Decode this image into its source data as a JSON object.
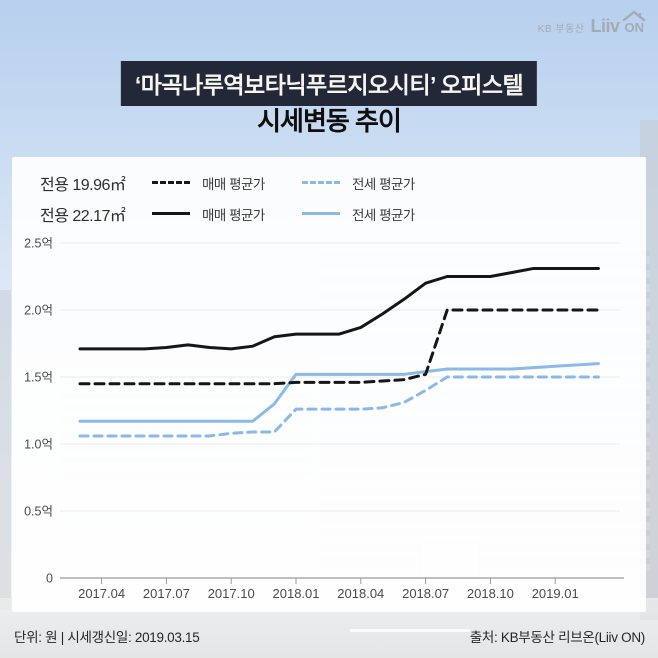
{
  "logo": {
    "brand_small": "KB 부동산",
    "brand_main": "Liiv",
    "brand_on": "ON"
  },
  "header": {
    "title": "‘마곡나루역보타닉푸르지오시티’ 오피스텔",
    "subtitle": "시세변동 추이",
    "band_color": "#232838"
  },
  "legend": {
    "rows": [
      {
        "area_label": "전용 19.96㎡",
        "sale_label": "매매 평균가",
        "jeonse_label": "전세 평균가",
        "line_style": "dashed"
      },
      {
        "area_label": "전용 22.17㎡",
        "sale_label": "매매 평균가",
        "jeonse_label": "전세 평균가",
        "line_style": "solid"
      }
    ]
  },
  "chart_data": {
    "type": "line",
    "unit": "억원",
    "ylim": [
      0,
      2.5
    ],
    "grid": true,
    "x": [
      "2017.03",
      "2017.04",
      "2017.05",
      "2017.06",
      "2017.07",
      "2017.08",
      "2017.09",
      "2017.10",
      "2017.11",
      "2017.12",
      "2018.01",
      "2018.02",
      "2018.03",
      "2018.04",
      "2018.05",
      "2018.06",
      "2018.07",
      "2018.08",
      "2018.09",
      "2018.10",
      "2018.11",
      "2018.12",
      "2019.01",
      "2019.02",
      "2019.03"
    ],
    "x_tick_labels": [
      "2017.04",
      "2017.07",
      "2017.10",
      "2018.01",
      "2018.04",
      "2018.07",
      "2018.10",
      "2019.01"
    ],
    "y_ticks": [
      {
        "label": "2.5억",
        "value": 2.5
      },
      {
        "label": "2.0억",
        "value": 2.0
      },
      {
        "label": "1.5억",
        "value": 1.5
      },
      {
        "label": "1.0억",
        "value": 1.0
      },
      {
        "label": "0.5억",
        "value": 0.5
      },
      {
        "label": "0",
        "value": 0
      }
    ],
    "series": [
      {
        "name": "전용 19.96㎡ 매매 평균가",
        "color": "#161616",
        "dash": true,
        "values": [
          1.45,
          1.45,
          1.45,
          1.45,
          1.45,
          1.45,
          1.45,
          1.45,
          1.45,
          1.45,
          1.46,
          1.46,
          1.46,
          1.46,
          1.47,
          1.48,
          1.52,
          2.0,
          2.0,
          2.0,
          2.0,
          2.0,
          2.0,
          2.0,
          2.0
        ]
      },
      {
        "name": "전용 22.17㎡ 매매 평균가",
        "color": "#161616",
        "dash": false,
        "values": [
          1.71,
          1.71,
          1.71,
          1.71,
          1.72,
          1.74,
          1.72,
          1.71,
          1.73,
          1.8,
          1.82,
          1.82,
          1.82,
          1.87,
          1.97,
          2.08,
          2.2,
          2.25,
          2.25,
          2.25,
          2.28,
          2.31,
          2.31,
          2.31,
          2.31
        ]
      },
      {
        "name": "전용 19.96㎡ 전세 평균가",
        "color": "#8cb8e6",
        "dash": true,
        "values": [
          1.06,
          1.06,
          1.06,
          1.06,
          1.06,
          1.06,
          1.06,
          1.08,
          1.09,
          1.09,
          1.26,
          1.26,
          1.26,
          1.26,
          1.27,
          1.31,
          1.4,
          1.5,
          1.5,
          1.5,
          1.5,
          1.5,
          1.5,
          1.5,
          1.5
        ]
      },
      {
        "name": "전용 22.17㎡ 전세 평균가",
        "color": "#8cbae7",
        "dash": false,
        "values": [
          1.17,
          1.17,
          1.17,
          1.17,
          1.17,
          1.17,
          1.17,
          1.17,
          1.17,
          1.3,
          1.52,
          1.52,
          1.52,
          1.52,
          1.52,
          1.52,
          1.54,
          1.56,
          1.56,
          1.56,
          1.56,
          1.57,
          1.58,
          1.59,
          1.6
        ]
      }
    ],
    "legend_position": "top"
  },
  "footer": {
    "left": "단위: 원 | 시세갱신일: 2019.03.15",
    "right": "출처: KB부동산 리브온(Liiv ON)"
  },
  "colors": {
    "sale_line": "#161616",
    "jeonse_line": "#8cbae7",
    "gridline": "#ebebeb",
    "axis": "#9a9a9a",
    "axis_text": "#4a4a4a",
    "title_band_bg": "#232838",
    "title_band_text": "#f7f5f0",
    "background_top": "#b7d0ed"
  }
}
